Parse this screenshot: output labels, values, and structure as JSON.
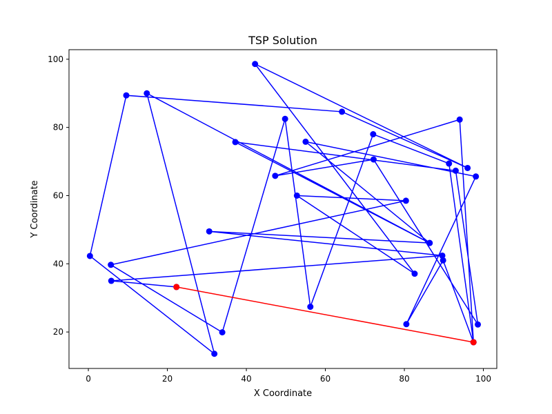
{
  "chart_data": {
    "type": "line",
    "title": "TSP Solution",
    "xlabel": "X Coordinate",
    "ylabel": "Y Coordinate",
    "xlim": [
      -4.9,
      103.4
    ],
    "ylim": [
      9.3,
      102.8
    ],
    "xticks": [
      0,
      20,
      40,
      60,
      80,
      100
    ],
    "yticks": [
      20,
      40,
      60,
      80,
      100
    ],
    "grid": false,
    "colors": {
      "tour": "#0000ff",
      "closing_edge": "#ff0000"
    },
    "series": [
      {
        "x": [
          22.3,
          5.8,
          89.6,
          30.6,
          86.4,
          37.2,
          93.0,
          98.6,
          72.2,
          47.3,
          94.0,
          97.5,
          89.8,
          80.5,
          98.1,
          55.0,
          86.4,
          14.8,
          31.9,
          0.4,
          9.6,
          64.2,
          96.0,
          42.2,
          82.6,
          52.8,
          80.4,
          5.7,
          33.9,
          49.8,
          56.2,
          72.1,
          91.3,
          97.5
        ],
        "y": [
          33.2,
          35.0,
          42.4,
          49.5,
          46.1,
          75.7,
          67.3,
          22.2,
          70.6,
          65.8,
          82.3,
          17.0,
          41.0,
          22.3,
          65.6,
          75.8,
          46.1,
          90.0,
          13.6,
          42.3,
          89.4,
          84.6,
          68.1,
          98.6,
          37.1,
          60.0,
          58.5,
          39.7,
          19.9,
          82.5,
          27.4,
          78.0,
          69.4,
          17.0
        ]
      },
      {
        "x": [
          97.5,
          22.3
        ],
        "y": [
          17.0,
          33.2
        ]
      }
    ]
  }
}
